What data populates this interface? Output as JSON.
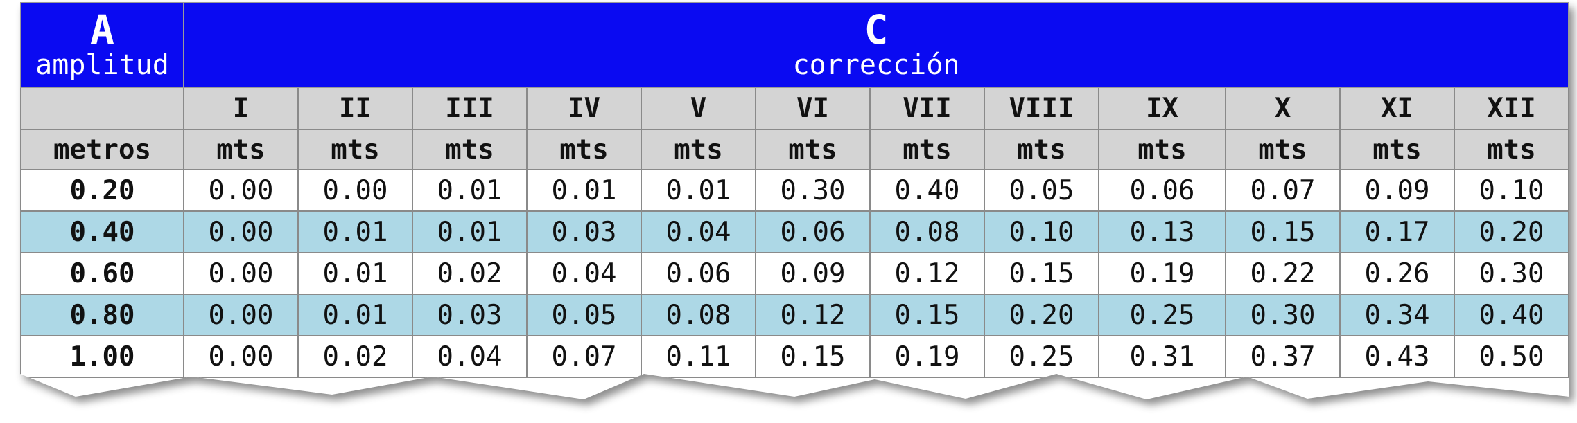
{
  "header": {
    "a_letter": "A",
    "a_label": "amplitud",
    "c_letter": "C",
    "c_label": "corrección"
  },
  "table": {
    "columns": [
      "I",
      "II",
      "III",
      "IV",
      "V",
      "VI",
      "VII",
      "VIII",
      "IX",
      "X",
      "XI",
      "XII"
    ],
    "units": [
      "metros",
      "mts",
      "mts",
      "mts",
      "mts",
      "mts",
      "mts",
      "mts",
      "mts",
      "mts",
      "mts",
      "mts",
      "mts"
    ],
    "rows": [
      [
        "0.20",
        "0.00",
        "0.00",
        "0.01",
        "0.01",
        "0.01",
        "0.30",
        "0.40",
        "0.05",
        "0.06",
        "0.07",
        "0.09",
        "0.10"
      ],
      [
        "0.40",
        "0.00",
        "0.01",
        "0.01",
        "0.03",
        "0.04",
        "0.06",
        "0.08",
        "0.10",
        "0.13",
        "0.15",
        "0.17",
        "0.20"
      ],
      [
        "0.60",
        "0.00",
        "0.01",
        "0.02",
        "0.04",
        "0.06",
        "0.09",
        "0.12",
        "0.15",
        "0.19",
        "0.22",
        "0.26",
        "0.30"
      ],
      [
        "0.80",
        "0.00",
        "0.01",
        "0.03",
        "0.05",
        "0.08",
        "0.12",
        "0.15",
        "0.20",
        "0.25",
        "0.30",
        "0.34",
        "0.40"
      ],
      [
        "1.00",
        "0.00",
        "0.02",
        "0.04",
        "0.07",
        "0.11",
        "0.15",
        "0.19",
        "0.25",
        "0.31",
        "0.37",
        "0.43",
        "0.50"
      ]
    ]
  }
}
